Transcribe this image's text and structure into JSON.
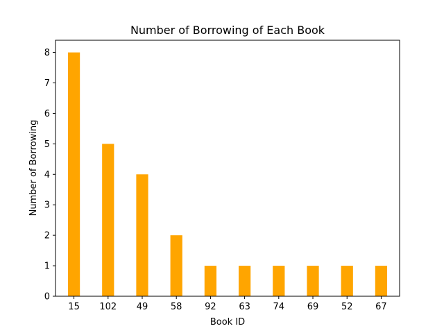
{
  "chart_data": {
    "type": "bar",
    "title": "Number of Borrowing of Each Book",
    "xlabel": "Book ID",
    "ylabel": "Number of Borrowing",
    "categories": [
      "15",
      "102",
      "49",
      "58",
      "92",
      "63",
      "74",
      "69",
      "52",
      "67"
    ],
    "values": [
      8,
      5,
      4,
      2,
      1,
      1,
      1,
      1,
      1,
      1
    ],
    "ylim": [
      0,
      8.4
    ],
    "yticks": [
      "0",
      "1",
      "2",
      "3",
      "4",
      "5",
      "6",
      "7",
      "8"
    ],
    "grid": false,
    "legend": "none",
    "bar_color": "#ffa500"
  }
}
